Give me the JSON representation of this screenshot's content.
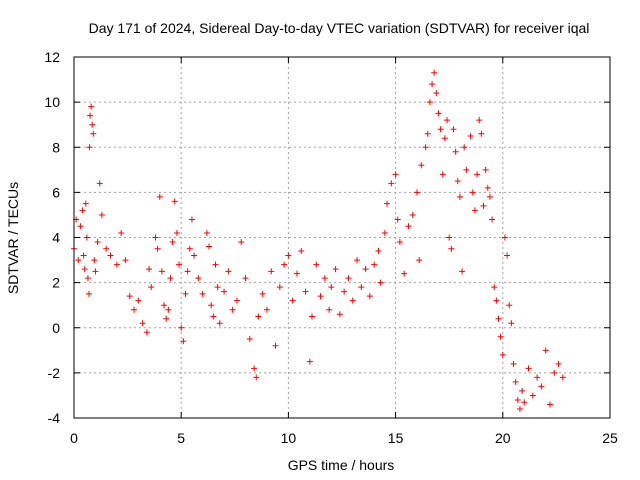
{
  "chart_data": {
    "type": "scatter",
    "title": "Day 171 of 2024, Sidereal Day-to-day VTEC variation (SDTVAR) for receiver iqal",
    "xlabel": "GPS time / hours",
    "ylabel": "SDTVAR / TECUs",
    "xlim": [
      0,
      25
    ],
    "ylim": [
      -4,
      12
    ],
    "xticks": [
      0,
      5,
      10,
      15,
      20,
      25
    ],
    "yticks": [
      -4,
      -2,
      0,
      2,
      4,
      6,
      8,
      10,
      12
    ],
    "grid": true,
    "marker": "+",
    "color": "#ff0000",
    "series": [
      {
        "name": "SDTVAR",
        "points": [
          [
            0.0,
            3.5
          ],
          [
            0.1,
            4.8
          ],
          [
            0.2,
            3.0
          ],
          [
            0.3,
            4.5
          ],
          [
            0.4,
            5.2
          ],
          [
            0.45,
            3.2
          ],
          [
            0.5,
            2.6
          ],
          [
            0.55,
            5.5
          ],
          [
            0.6,
            4.0
          ],
          [
            0.65,
            2.2
          ],
          [
            0.7,
            1.5
          ],
          [
            0.72,
            8.0
          ],
          [
            0.75,
            9.4
          ],
          [
            0.8,
            9.8
          ],
          [
            0.85,
            9.0
          ],
          [
            0.9,
            8.6
          ],
          [
            0.95,
            3.0
          ],
          [
            1.0,
            2.5
          ],
          [
            1.1,
            3.8
          ],
          [
            1.2,
            6.4
          ],
          [
            1.3,
            5.0
          ],
          [
            1.5,
            3.5
          ],
          [
            1.7,
            3.2
          ],
          [
            2.0,
            2.8
          ],
          [
            2.2,
            4.2
          ],
          [
            2.4,
            3.0
          ],
          [
            2.6,
            1.4
          ],
          [
            2.8,
            0.8
          ],
          [
            3.0,
            1.2
          ],
          [
            3.2,
            0.2
          ],
          [
            3.4,
            -0.2
          ],
          [
            3.5,
            2.6
          ],
          [
            3.6,
            1.8
          ],
          [
            3.8,
            4.0
          ],
          [
            3.9,
            3.5
          ],
          [
            4.0,
            5.8
          ],
          [
            4.1,
            2.5
          ],
          [
            4.2,
            1.0
          ],
          [
            4.3,
            0.4
          ],
          [
            4.4,
            0.8
          ],
          [
            4.5,
            2.2
          ],
          [
            4.6,
            3.8
          ],
          [
            4.7,
            5.6
          ],
          [
            4.8,
            4.2
          ],
          [
            4.9,
            2.8
          ],
          [
            5.0,
            0.0
          ],
          [
            5.1,
            -0.6
          ],
          [
            5.2,
            1.5
          ],
          [
            5.3,
            2.5
          ],
          [
            5.4,
            3.5
          ],
          [
            5.5,
            4.8
          ],
          [
            5.6,
            3.2
          ],
          [
            5.8,
            2.2
          ],
          [
            6.0,
            1.5
          ],
          [
            6.2,
            4.2
          ],
          [
            6.3,
            3.6
          ],
          [
            6.4,
            1.0
          ],
          [
            6.5,
            0.5
          ],
          [
            6.6,
            2.8
          ],
          [
            6.7,
            1.8
          ],
          [
            6.8,
            0.2
          ],
          [
            7.0,
            1.6
          ],
          [
            7.2,
            2.5
          ],
          [
            7.4,
            0.8
          ],
          [
            7.6,
            1.2
          ],
          [
            7.8,
            3.8
          ],
          [
            8.0,
            2.2
          ],
          [
            8.2,
            -0.5
          ],
          [
            8.4,
            -1.8
          ],
          [
            8.5,
            -2.2
          ],
          [
            8.6,
            0.5
          ],
          [
            8.8,
            1.5
          ],
          [
            9.0,
            0.8
          ],
          [
            9.2,
            2.5
          ],
          [
            9.4,
            -0.8
          ],
          [
            9.6,
            1.8
          ],
          [
            9.8,
            2.8
          ],
          [
            10.0,
            3.2
          ],
          [
            10.2,
            1.2
          ],
          [
            10.4,
            2.4
          ],
          [
            10.6,
            3.4
          ],
          [
            10.8,
            1.6
          ],
          [
            11.0,
            -1.5
          ],
          [
            11.1,
            0.5
          ],
          [
            11.3,
            2.8
          ],
          [
            11.5,
            1.4
          ],
          [
            11.7,
            2.2
          ],
          [
            11.9,
            0.8
          ],
          [
            12.0,
            1.8
          ],
          [
            12.2,
            2.6
          ],
          [
            12.4,
            0.6
          ],
          [
            12.6,
            1.6
          ],
          [
            12.8,
            2.2
          ],
          [
            13.0,
            1.2
          ],
          [
            13.2,
            3.0
          ],
          [
            13.4,
            1.8
          ],
          [
            13.6,
            2.6
          ],
          [
            13.8,
            1.4
          ],
          [
            14.0,
            2.8
          ],
          [
            14.2,
            3.4
          ],
          [
            14.3,
            2.0
          ],
          [
            14.5,
            4.2
          ],
          [
            14.6,
            5.5
          ],
          [
            14.8,
            6.4
          ],
          [
            15.0,
            6.8
          ],
          [
            15.1,
            4.8
          ],
          [
            15.2,
            3.8
          ],
          [
            15.4,
            2.4
          ],
          [
            15.6,
            4.5
          ],
          [
            15.8,
            5.0
          ],
          [
            16.0,
            6.0
          ],
          [
            16.1,
            3.0
          ],
          [
            16.2,
            7.2
          ],
          [
            16.4,
            8.0
          ],
          [
            16.5,
            8.6
          ],
          [
            16.6,
            10.0
          ],
          [
            16.7,
            10.8
          ],
          [
            16.8,
            11.3
          ],
          [
            16.9,
            10.4
          ],
          [
            17.0,
            9.5
          ],
          [
            17.1,
            8.8
          ],
          [
            17.2,
            6.8
          ],
          [
            17.3,
            8.4
          ],
          [
            17.4,
            9.2
          ],
          [
            17.5,
            4.0
          ],
          [
            17.6,
            3.5
          ],
          [
            17.7,
            8.8
          ],
          [
            17.8,
            7.8
          ],
          [
            17.9,
            6.5
          ],
          [
            18.0,
            5.8
          ],
          [
            18.1,
            2.5
          ],
          [
            18.2,
            8.0
          ],
          [
            18.3,
            7.0
          ],
          [
            18.5,
            8.5
          ],
          [
            18.6,
            6.0
          ],
          [
            18.7,
            5.2
          ],
          [
            18.8,
            6.8
          ],
          [
            18.9,
            9.2
          ],
          [
            19.0,
            8.6
          ],
          [
            19.1,
            5.4
          ],
          [
            19.2,
            7.0
          ],
          [
            19.3,
            6.2
          ],
          [
            19.4,
            5.8
          ],
          [
            19.5,
            4.8
          ],
          [
            19.6,
            1.8
          ],
          [
            19.7,
            1.2
          ],
          [
            19.8,
            0.4
          ],
          [
            19.9,
            -0.4
          ],
          [
            20.0,
            -1.2
          ],
          [
            20.1,
            4.0
          ],
          [
            20.2,
            3.2
          ],
          [
            20.3,
            1.0
          ],
          [
            20.4,
            0.2
          ],
          [
            20.5,
            -1.6
          ],
          [
            20.6,
            -2.4
          ],
          [
            20.7,
            -3.2
          ],
          [
            20.8,
            -3.6
          ],
          [
            20.9,
            -2.8
          ],
          [
            21.0,
            -3.3
          ],
          [
            21.2,
            -1.8
          ],
          [
            21.4,
            -3.0
          ],
          [
            21.6,
            -2.2
          ],
          [
            21.8,
            -2.6
          ],
          [
            22.0,
            -1.0
          ],
          [
            22.2,
            -3.4
          ],
          [
            22.4,
            -2.0
          ],
          [
            22.6,
            -1.6
          ],
          [
            22.8,
            -2.2
          ]
        ]
      }
    ]
  }
}
